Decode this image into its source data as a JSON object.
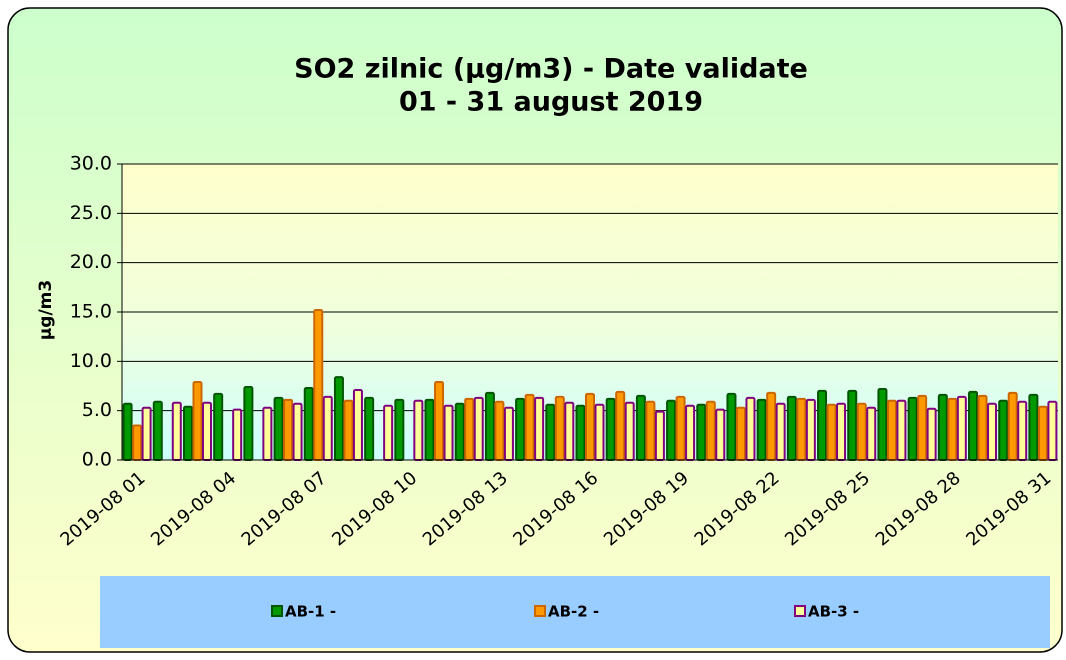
{
  "chart_data": {
    "type": "bar",
    "title": "SO2 zilnic (µg/m3)  - Date validate",
    "subtitle": "01 - 31 august 2019",
    "y_label": "µg/m3",
    "categories": [
      "2019-08 01",
      null,
      null,
      "2019-08 04",
      null,
      null,
      "2019-08 07",
      null,
      null,
      "2019-08 10",
      null,
      null,
      "2019-08 13",
      null,
      null,
      "2019-08 16",
      null,
      null,
      "2019-08 19",
      null,
      null,
      "2019-08 22",
      null,
      null,
      "2019-08 25",
      null,
      null,
      "2019-08 28",
      null,
      null,
      "2019-08 31"
    ],
    "series": [
      {
        "name": "AB-1 -",
        "color": "#009900",
        "values": [
          5.7,
          5.9,
          5.4,
          6.7,
          7.4,
          6.3,
          7.3,
          8.4,
          6.3,
          6.1,
          6.1,
          5.7,
          6.8,
          6.2,
          5.6,
          5.5,
          6.2,
          6.5,
          6.0,
          5.6,
          6.7,
          6.1,
          6.4,
          7.0,
          7.0,
          7.2,
          6.3,
          6.6,
          6.9,
          6.0,
          6.6
        ]
      },
      {
        "name": "AB-2 -",
        "color": "#ff9900",
        "values": [
          3.5,
          null,
          7.9,
          null,
          null,
          6.1,
          15.2,
          6.0,
          null,
          null,
          7.9,
          6.2,
          5.9,
          6.6,
          6.4,
          6.7,
          6.9,
          5.9,
          6.4,
          5.9,
          5.3,
          6.8,
          6.2,
          5.6,
          5.7,
          6.0,
          6.5,
          6.2,
          6.5,
          6.8,
          5.4
        ]
      },
      {
        "name": "AB-3 -",
        "color": "#ffff99",
        "values": [
          5.3,
          5.8,
          5.8,
          5.1,
          5.3,
          5.7,
          6.4,
          7.1,
          5.5,
          6.0,
          5.5,
          6.3,
          5.3,
          6.3,
          5.8,
          5.6,
          5.8,
          4.9,
          5.5,
          5.1,
          6.3,
          5.7,
          6.1,
          5.7,
          5.3,
          6.0,
          5.2,
          6.4,
          5.7,
          5.9,
          5.9
        ]
      }
    ],
    "ylim": [
      0,
      30
    ],
    "yticks": [
      {
        "value": 0,
        "label": "0.0"
      },
      {
        "value": 5,
        "label": "5.0"
      },
      {
        "value": 10,
        "label": "10.0"
      },
      {
        "value": 15,
        "label": "15.0"
      },
      {
        "value": 20,
        "label": "20.0"
      },
      {
        "value": 25,
        "label": "25.0"
      },
      {
        "value": 30,
        "label": "30.0"
      }
    ],
    "grid": true,
    "legend": "bottom"
  }
}
